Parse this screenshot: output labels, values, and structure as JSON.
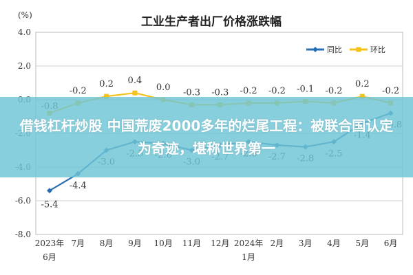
{
  "chart_data": {
    "type": "line",
    "title": "工业生产者出厂价格涨跌幅",
    "unit": "(%)",
    "categories": [
      "2023年|6月",
      "7月",
      "8月",
      "9月",
      "10月",
      "11月",
      "12月",
      "2024年|1月",
      "2月",
      "3月",
      "4月",
      "5月",
      "6月"
    ],
    "series": [
      {
        "name": "同比",
        "values": [
          -5.4,
          -4.4,
          -3.0,
          -2.5,
          -2.6,
          -3.0,
          -2.7,
          -2.5,
          -2.7,
          -2.8,
          -2.5,
          -1.4,
          -0.8
        ],
        "color": "#2a6db0"
      },
      {
        "name": "环比",
        "values": [
          -0.8,
          -0.2,
          0.2,
          0.4,
          0.0,
          -0.3,
          -0.3,
          -0.2,
          -0.2,
          -0.1,
          -0.2,
          0.2,
          -0.2
        ],
        "color": "#f4c21b"
      }
    ],
    "ylim": [
      -8.0,
      4.0
    ],
    "yticks": [
      "4.0",
      "2.0",
      "0.0",
      "-2.0",
      "-4.0",
      "-6.0",
      "-8.0"
    ],
    "grid": true,
    "legend": "top-right"
  },
  "overlay": {
    "text": "借钱杠杆炒股 中国荒废2000多年的烂尾工程：被联合国认定为奇迹，堪称世界第一",
    "color": "#6ec4d6"
  }
}
